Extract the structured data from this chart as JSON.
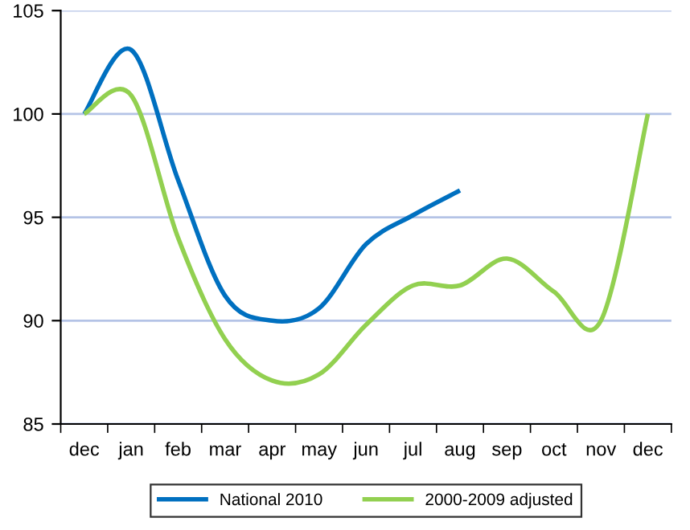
{
  "chart_data": {
    "type": "line",
    "categories": [
      "dec",
      "jan",
      "feb",
      "mar",
      "apr",
      "may",
      "jun",
      "jul",
      "aug",
      "sep",
      "oct",
      "nov",
      "dec"
    ],
    "series": [
      {
        "name": "National 2010",
        "color": "#0070c0",
        "values": [
          100,
          103.1,
          96.8,
          91.2,
          90.0,
          90.6,
          93.7,
          95.1,
          96.3,
          null,
          null,
          null,
          null
        ]
      },
      {
        "name": "2000-2009 adjusted",
        "color": "#92d050",
        "values": [
          100,
          100.9,
          94.0,
          89.1,
          87.1,
          87.4,
          89.8,
          91.7,
          91.7,
          93.0,
          91.4,
          90.0,
          100
        ]
      }
    ],
    "ylim": [
      85,
      105
    ],
    "yticks": [
      85,
      90,
      95,
      100,
      105
    ],
    "grid": "y",
    "legend": "bottom",
    "marker": "none",
    "line_style": "solid"
  }
}
